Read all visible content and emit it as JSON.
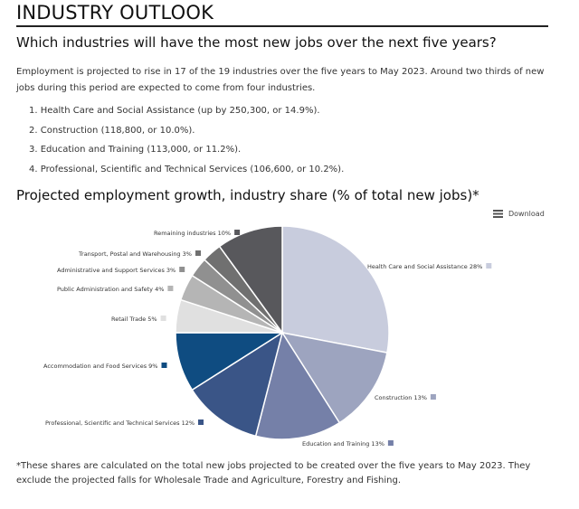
{
  "header": {
    "title": "INDUSTRY OUTLOOK",
    "question": "Which industries will have the most new jobs over the next five years?"
  },
  "intro": {
    "paragraph": "Employment is projected to rise in 17 of the 19 industries over the five years to May 2023. Around two thirds of new jobs during this period are expected to come from four industries.",
    "items": [
      "1. Health Care and Social Assistance (up by 250,300, or 14.9%).",
      "2. Construction (118,800, or 10.0%).",
      "3. Education and Training (113,000, or 11.2%).",
      "4. Professional, Scientific and Technical Services (106,600, or 10.2%)."
    ]
  },
  "chart_section": {
    "title": "Projected employment growth, industry share (% of total new jobs)*",
    "download_label": "Download",
    "download_icon": "menu-icon"
  },
  "chart_data": {
    "type": "pie",
    "start_angle_deg": 0,
    "slices": [
      {
        "label": "Health Care and Social Assistance 28%",
        "value": 28,
        "color": "#c8ccdd"
      },
      {
        "label": "Construction 13%",
        "value": 13,
        "color": "#9da4bf"
      },
      {
        "label": "Education and Training 13%",
        "value": 13,
        "color": "#7580a8"
      },
      {
        "label": "Professional, Scientific and Technical Services 12%",
        "value": 12,
        "color": "#3a5587"
      },
      {
        "label": "Accommodation and Food Services 9%",
        "value": 9,
        "color": "#0f4c81"
      },
      {
        "label": "Retail Trade 5%",
        "value": 5,
        "color": "#e0e0e0"
      },
      {
        "label": "Public Administration and Safety 4%",
        "value": 4,
        "color": "#b5b5b5"
      },
      {
        "label": "Administrative and Support Services 3%",
        "value": 3,
        "color": "#909090"
      },
      {
        "label": "Transport, Postal and Warehousing 3%",
        "value": 3,
        "color": "#707070"
      },
      {
        "label": "Remaining industries 10%",
        "value": 10,
        "color": "#58585c"
      }
    ]
  },
  "footnote": "*These shares are calculated on the total new jobs projected to be created over the five years to May 2023. They exclude the projected falls for Wholesale Trade and Agriculture, Forestry and Fishing."
}
